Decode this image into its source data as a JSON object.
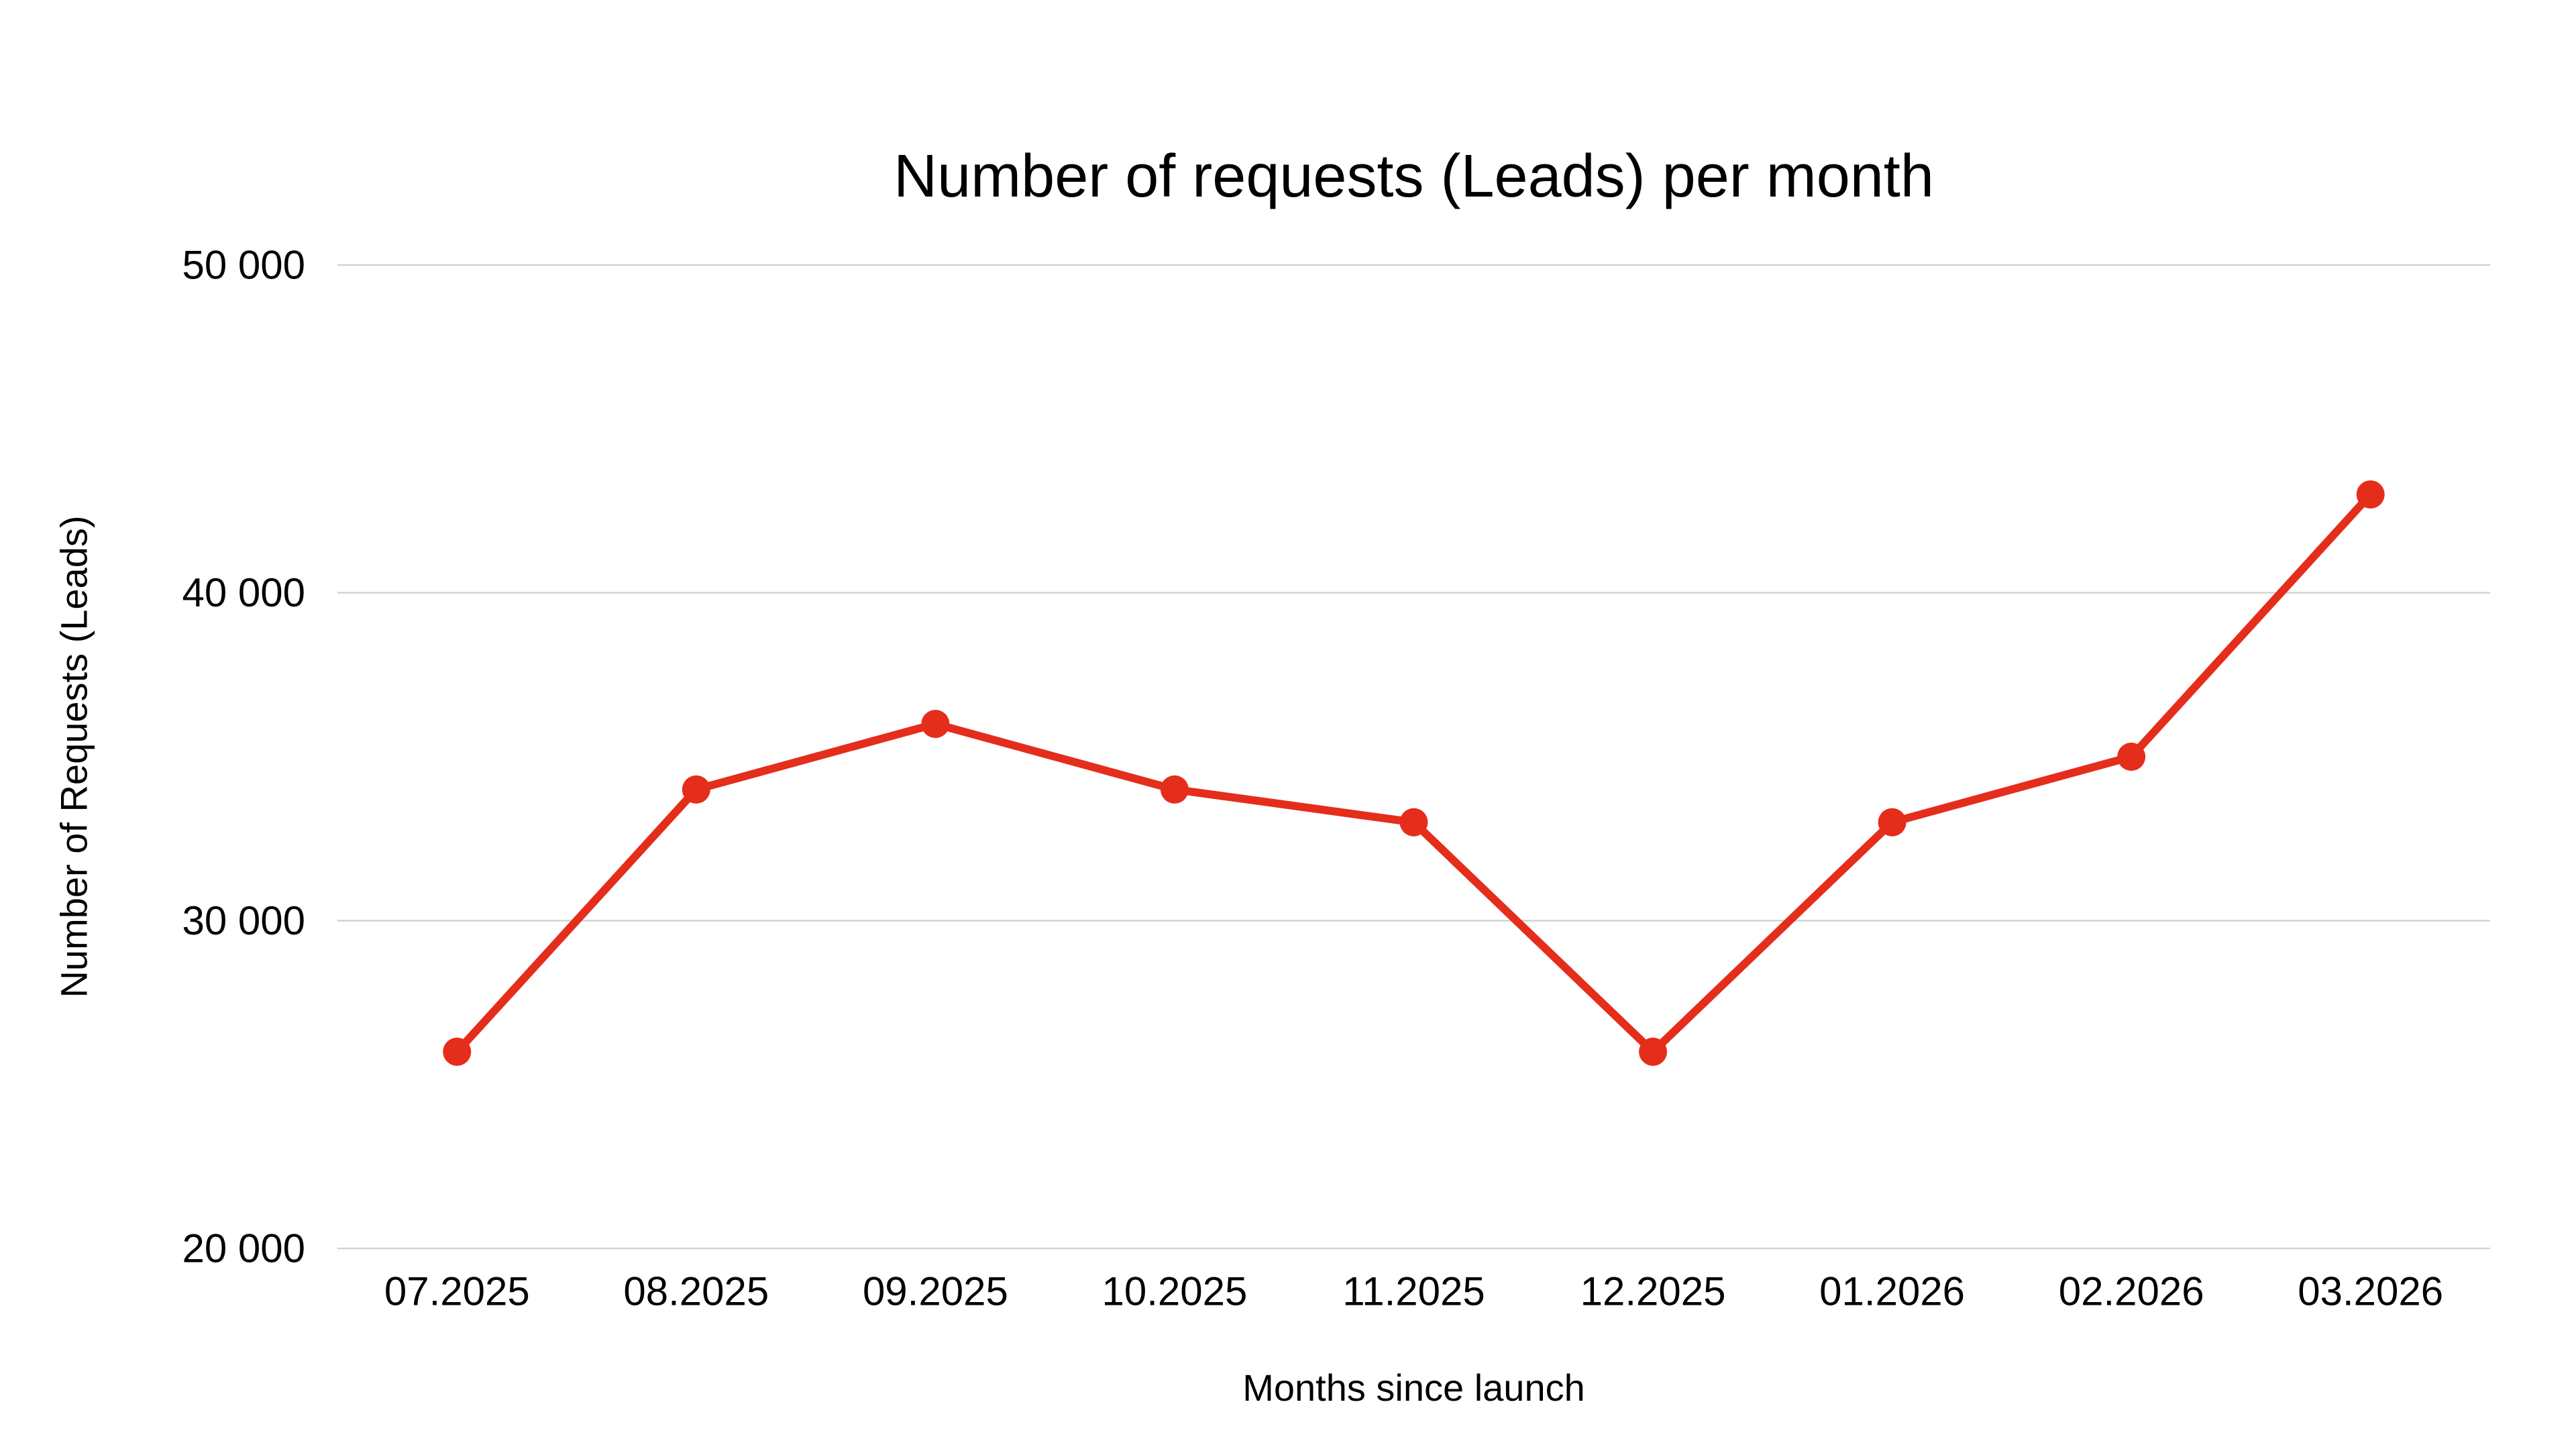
{
  "chart_data": {
    "type": "line",
    "title": "Number of requests (Leads) per month",
    "xlabel": "Months since launch",
    "ylabel": "Number of Requests (Leads)",
    "categories": [
      "07.2025",
      "08.2025",
      "09.2025",
      "10.2025",
      "11.2025",
      "12.2025",
      "01.2026",
      "02.2026",
      "03.2026"
    ],
    "series": [
      {
        "name": "Number of Requests (Leads)",
        "values": [
          26000,
          34000,
          36000,
          34000,
          33000,
          26000,
          33000,
          35000,
          43000
        ]
      }
    ],
    "ylim": [
      20000,
      50000
    ],
    "y_ticks": [
      {
        "value": 50000,
        "label": "50 000"
      },
      {
        "value": 40000,
        "label": "40 000"
      },
      {
        "value": 30000,
        "label": "30 000"
      },
      {
        "value": 20000,
        "label": "20 000"
      }
    ],
    "grid": "horizontal-only",
    "legend": "none",
    "colors": {
      "line": "#e52d1c",
      "point": "#e52d1c",
      "grid": "#d2d2d2",
      "text": "#000000",
      "background": "#ffffff"
    }
  }
}
